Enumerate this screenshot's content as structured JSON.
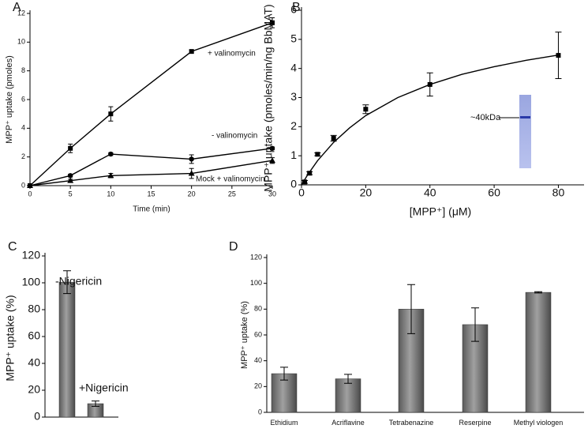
{
  "chart_data": [
    {
      "type": "line",
      "panel_label": "A",
      "x_label": "Time (min)",
      "y_label": "MPP⁺ uptake (pmoles)",
      "xlim": [
        0,
        30
      ],
      "xticks": [
        0,
        5,
        10,
        15,
        20,
        25,
        30
      ],
      "ylim": [
        0,
        12
      ],
      "yticks": [
        0,
        2,
        4,
        6,
        8,
        10,
        12
      ],
      "x": [
        0,
        5,
        10,
        20,
        30
      ],
      "series": [
        {
          "name": "+ valinomycin",
          "color": "#000000",
          "marker": "square",
          "values": [
            0,
            2.6,
            5.0,
            9.35,
            11.35
          ],
          "errors": [
            0,
            0.3,
            0.5,
            0.1,
            0.35
          ]
        },
        {
          "name": "- valinomycin",
          "color": "#000000",
          "marker": "circle",
          "values": [
            0,
            0.7,
            2.2,
            1.85,
            2.6
          ],
          "errors": [
            0,
            0.1,
            0.1,
            0.3,
            0.1
          ]
        },
        {
          "name": "Mock + valinomycin",
          "color": "#000000",
          "marker": "triangle",
          "values": [
            0,
            0.35,
            0.7,
            0.85,
            1.75
          ],
          "errors": [
            0,
            0.1,
            0.15,
            0.35,
            0.2
          ]
        }
      ]
    },
    {
      "type": "scatter",
      "panel_label": "B",
      "x_label": "[MPP⁺] (μM)",
      "y_label": "MPP⁺ uptake (pmoles/min/ng BbMAT)",
      "annotation": "~40kDa",
      "xlim": [
        0,
        88
      ],
      "xticks": [
        0,
        20,
        40,
        60,
        80
      ],
      "ylim": [
        0,
        6
      ],
      "yticks": [
        0,
        1,
        2,
        3,
        4,
        5,
        6
      ],
      "x": [
        1,
        2.5,
        5,
        10,
        20,
        40,
        80
      ],
      "series": [
        {
          "color": "#000000",
          "marker": "square",
          "values": [
            0.1,
            0.4,
            1.05,
            1.6,
            2.6,
            3.45,
            4.45
          ],
          "errors": [
            0.05,
            0.05,
            0.05,
            0.1,
            0.15,
            0.4,
            0.8
          ]
        }
      ],
      "fit": {
        "x": [
          0,
          2,
          5,
          10,
          15,
          20,
          30,
          40,
          50,
          60,
          70,
          80
        ],
        "values": [
          0,
          0.36,
          0.83,
          1.46,
          1.96,
          2.38,
          3.0,
          3.45,
          3.8,
          4.06,
          4.28,
          4.46
        ]
      }
    },
    {
      "type": "bar",
      "panel_label": "C",
      "y_label": "MPP⁺ uptake (%)",
      "ylim": [
        0,
        120
      ],
      "yticks": [
        0,
        20,
        40,
        60,
        80,
        100,
        120
      ],
      "categories": [
        null,
        null
      ],
      "values": [
        100.5,
        10
      ],
      "errors": [
        8.5,
        2
      ],
      "annotations": [
        "-Nigericin",
        "+Nigericin"
      ]
    },
    {
      "type": "bar",
      "panel_label": "D",
      "y_label": "MPP⁺ uptake (%)",
      "ylim": [
        0,
        120
      ],
      "yticks": [
        0,
        20,
        40,
        60,
        80,
        100,
        120
      ],
      "categories": [
        "Ethidium",
        "Acriflavine",
        "Tetrabenazine",
        "Reserpine",
        "Methyl viologen"
      ],
      "values": [
        30,
        26,
        80,
        68,
        93
      ],
      "errors": [
        5,
        3.5,
        19,
        13,
        0.5
      ]
    }
  ]
}
